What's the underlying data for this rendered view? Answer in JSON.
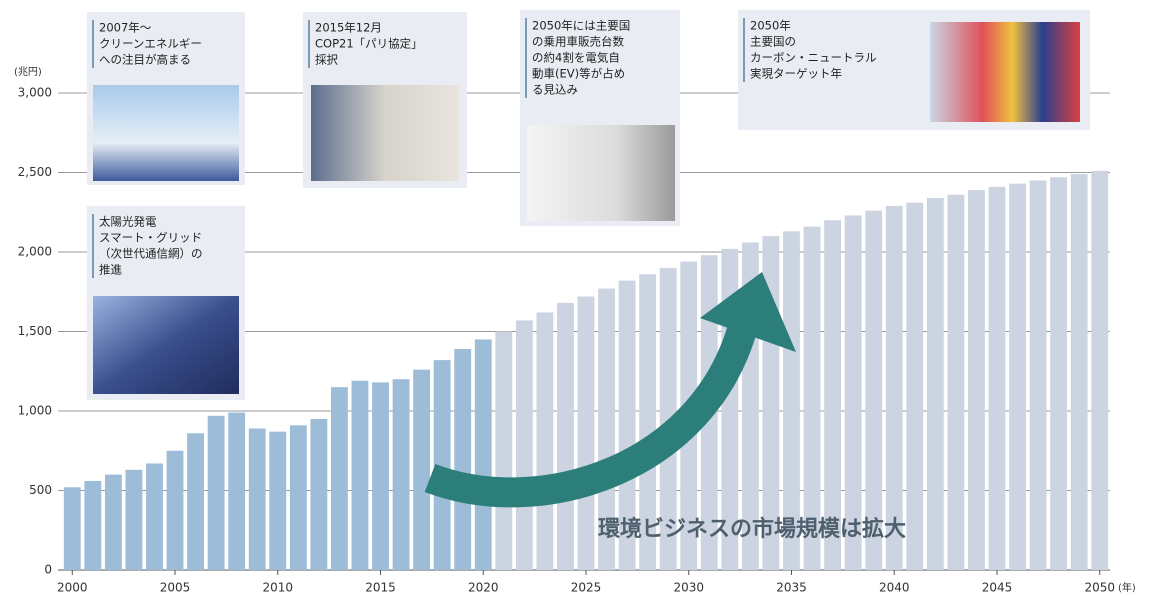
{
  "chart_data": {
    "type": "bar",
    "y_unit_label": "(兆円)",
    "x_unit_label": "(年)",
    "x": [
      2000,
      2001,
      2002,
      2003,
      2004,
      2005,
      2006,
      2007,
      2008,
      2009,
      2010,
      2011,
      2012,
      2013,
      2014,
      2015,
      2016,
      2017,
      2018,
      2019,
      2020,
      2021,
      2022,
      2023,
      2024,
      2025,
      2026,
      2027,
      2028,
      2029,
      2030,
      2031,
      2032,
      2033,
      2034,
      2035,
      2036,
      2037,
      2038,
      2039,
      2040,
      2041,
      2042,
      2043,
      2044,
      2045,
      2046,
      2047,
      2048,
      2049,
      2050
    ],
    "series": [
      {
        "color": "#9dbcd8",
        "values": [
          520,
          560,
          600,
          630,
          670,
          750,
          860,
          970,
          990,
          890,
          870,
          910,
          950,
          1150,
          1190,
          1180,
          1200,
          1260,
          1320,
          1390,
          1450,
          null,
          null,
          null,
          null,
          null,
          null,
          null,
          null,
          null,
          null,
          null,
          null,
          null,
          null,
          null,
          null,
          null,
          null,
          null,
          null,
          null,
          null,
          null,
          null,
          null,
          null,
          null,
          null,
          null,
          null
        ]
      },
      {
        "color": "#cdd4e1",
        "values": [
          null,
          null,
          null,
          null,
          null,
          null,
          null,
          null,
          null,
          null,
          null,
          null,
          null,
          null,
          null,
          null,
          null,
          null,
          null,
          null,
          null,
          1500,
          1570,
          1620,
          1680,
          1720,
          1770,
          1820,
          1860,
          1900,
          1940,
          1980,
          2020,
          2060,
          2100,
          2130,
          2160,
          2200,
          2230,
          2260,
          2290,
          2310,
          2340,
          2360,
          2390,
          2410,
          2430,
          2450,
          2470,
          2490,
          2510
        ]
      }
    ],
    "xlim": [
      1999.5,
      2050.5
    ],
    "xticks": [
      2000,
      2005,
      2010,
      2015,
      2020,
      2025,
      2030,
      2035,
      2040,
      2045,
      2050
    ],
    "ylim": [
      0,
      3000
    ],
    "yticks": [
      0,
      500,
      {
        "value": 1000,
        "label": "1,000"
      },
      {
        "value": 1500,
        "label": "1,500"
      },
      {
        "value": 2000,
        "label": "2,000"
      },
      {
        "value": 2500,
        "label": "2,500"
      },
      {
        "value": 3000,
        "label": "3,000"
      }
    ],
    "grid": true,
    "arrow_label": "環境ビジネスの市場規模は拡大",
    "annotations": [
      {
        "lines": [
          "2007年～",
          "クリーンエネルギー",
          "への注目が高まる"
        ]
      },
      {
        "lines": [
          "太陽光発電",
          "スマート・グリッド",
          "（次世代通信網）の",
          "推進"
        ]
      },
      {
        "lines": [
          "2015年12月",
          "COP21「パリ協定」",
          "採択"
        ]
      },
      {
        "lines": [
          "2050年には主要国",
          "の乗用車販売台数",
          "の約4割を電気自",
          "動車(EV)等が占め",
          "る見込み"
        ]
      },
      {
        "lines": [
          "2050年",
          "主要国の",
          "カーボン・ニュートラル",
          "実現ターゲット年"
        ]
      }
    ]
  }
}
